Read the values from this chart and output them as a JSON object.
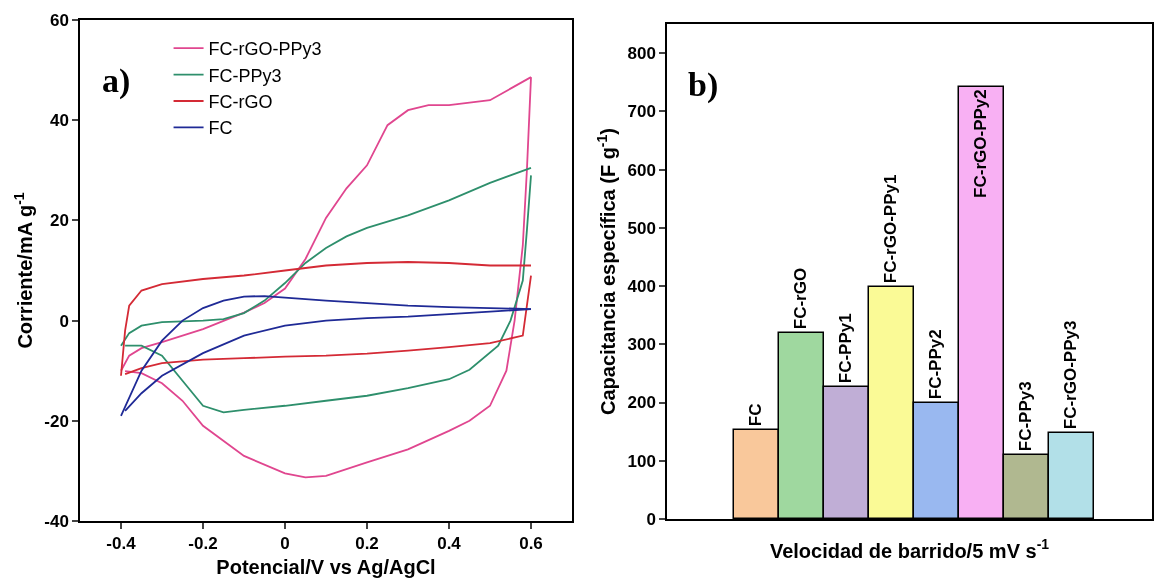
{
  "chart_data": [
    {
      "type": "line",
      "xlabel": "Potencial/V vs Ag/AgCl",
      "ylabel": "Corriente/mA g$^{-1}$",
      "annotations": [
        "a)"
      ],
      "xlim": [
        -0.5,
        0.7
      ],
      "xticks": [
        -0.4,
        -0.2,
        0.0,
        0.2,
        0.4,
        0.6
      ],
      "ylim": [
        -40,
        60
      ],
      "yticks": [
        -40,
        -20,
        0,
        20,
        40,
        60
      ],
      "grid": false,
      "legend": "top left",
      "marker": "none",
      "line_style": "solid",
      "series": [
        {
          "name": "FC-rGO-PPy3",
          "color": "#e0468f",
          "x": [
            -0.4,
            -0.38,
            -0.35,
            -0.3,
            -0.2,
            -0.1,
            -0.05,
            0,
            0.05,
            0.1,
            0.15,
            0.2,
            0.25,
            0.3,
            0.35,
            0.4,
            0.45,
            0.5,
            0.55,
            0.6
          ],
          "values": [
            -10,
            -7,
            -5.5,
            -4.3,
            -1.7,
            1.6,
            3.5,
            6.4,
            12.3,
            20.5,
            26.4,
            31,
            39,
            42,
            43,
            43,
            43.5,
            44,
            46.3,
            48.6
          ]
        },
        {
          "color": "#e0468f",
          "x": [
            0.6,
            0.59,
            0.58,
            0.56,
            0.54,
            0.5,
            0.45,
            0.4,
            0.3,
            0.2,
            0.1,
            0.05,
            0,
            -0.1,
            -0.2,
            -0.25,
            -0.3,
            -0.35,
            -0.39
          ],
          "values": [
            48.6,
            30,
            15,
            0,
            -10,
            -17,
            -20,
            -22,
            -25.7,
            -28.3,
            -31,
            -31.3,
            -30.5,
            -27,
            -21,
            -16,
            -12.5,
            -10.5,
            -10.1
          ]
        },
        {
          "name": "FC-PPy3",
          "color": "#2e8f6c",
          "x": [
            -0.4,
            -0.38,
            -0.35,
            -0.3,
            -0.2,
            -0.15,
            -0.1,
            -0.05,
            0,
            0.05,
            0.1,
            0.15,
            0.2,
            0.3,
            0.4,
            0.5,
            0.6
          ],
          "values": [
            -5,
            -2.5,
            -1,
            -0.3,
            0,
            0.3,
            1.5,
            4,
            7.5,
            11.5,
            14.5,
            16.8,
            18.5,
            21,
            24,
            27.5,
            30.5
          ]
        },
        {
          "color": "#2e8f6c",
          "x": [
            0.6,
            0.59,
            0.58,
            0.55,
            0.52,
            0.45,
            0.4,
            0.3,
            0.2,
            0.1,
            0,
            -0.1,
            -0.15,
            -0.2,
            -0.25,
            -0.3,
            -0.35,
            -0.39
          ],
          "values": [
            29,
            18,
            8,
            0,
            -5,
            -9.8,
            -11.7,
            -13.5,
            -15,
            -16,
            -17,
            -17.8,
            -18.3,
            -17,
            -12,
            -7,
            -5,
            -5
          ]
        },
        {
          "name": "FC-rGO",
          "color": "#d42a35",
          "x": [
            -0.4,
            -0.39,
            -0.38,
            -0.35,
            -0.3,
            -0.2,
            -0.1,
            0,
            0.1,
            0.2,
            0.3,
            0.4,
            0.5,
            0.6
          ],
          "values": [
            -11,
            -2,
            3,
            6,
            7.3,
            8.3,
            9,
            10,
            11,
            11.5,
            11.7,
            11.5,
            11,
            11
          ]
        },
        {
          "color": "#d42a35",
          "x": [
            0.6,
            0.58,
            0.5,
            0.4,
            0.3,
            0.2,
            0.1,
            0,
            -0.1,
            -0.2,
            -0.3,
            -0.35,
            -0.39
          ],
          "values": [
            9,
            -3,
            -4.5,
            -5.3,
            -6,
            -6.6,
            -7,
            -7.2,
            -7.5,
            -7.8,
            -8.5,
            -9.5,
            -10.7
          ]
        },
        {
          "name": "FC",
          "color": "#1f2a96",
          "x": [
            -0.4,
            -0.35,
            -0.3,
            -0.25,
            -0.2,
            -0.15,
            -0.1,
            -0.05,
            0,
            0.1,
            0.2,
            0.3,
            0.4,
            0.5,
            0.6
          ],
          "values": [
            -19,
            -10,
            -4,
            0,
            2.5,
            4,
            4.8,
            4.9,
            4.6,
            4,
            3.5,
            3,
            2.7,
            2.5,
            2.3
          ]
        },
        {
          "color": "#1f2a96",
          "x": [
            0.6,
            0.5,
            0.4,
            0.3,
            0.2,
            0.1,
            0,
            -0.1,
            -0.2,
            -0.3,
            -0.35,
            -0.39
          ],
          "values": [
            2.3,
            1.8,
            1.3,
            0.8,
            0.5,
            0,
            -1,
            -3,
            -6.5,
            -11,
            -14.5,
            -18
          ]
        }
      ]
    },
    {
      "type": "bar",
      "xlabel": "Velocidad de barrido/5 mV s$^{-1}$",
      "ylabel": "Capacitancia específica (F g$^{-1}$)",
      "annotations": [
        "b)"
      ],
      "ylim": [
        0,
        850
      ],
      "yticks": [
        0,
        100,
        200,
        300,
        400,
        500,
        600,
        700,
        800
      ],
      "grid": false,
      "tick_labels": "y",
      "categories": [
        "FC",
        "FC-rGO",
        "FC-PPy1",
        "FC-rGO-PPy1",
        "FC-PPy2",
        "FC-rGO-PPy2",
        "FC-PPy3",
        "FC-rGO-PPy3"
      ],
      "values": [
        152,
        320,
        227,
        398,
        200,
        742,
        110,
        147
      ],
      "colors": [
        "#f9c89b",
        "#9fd89f",
        "#c0aed6",
        "#fafa96",
        "#99b8f0",
        "#f8b0f3",
        "#b0b890",
        "#b2e0e8"
      ]
    }
  ]
}
